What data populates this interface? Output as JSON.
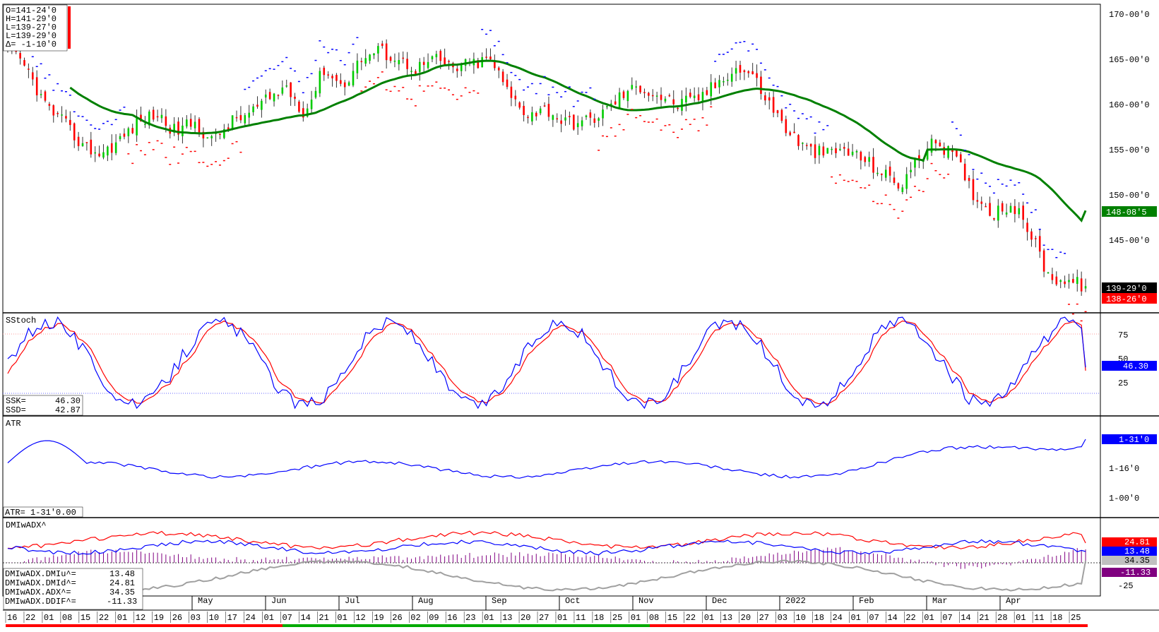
{
  "colors": {
    "up_bar": "#00cc00",
    "down_bar": "#ff0000",
    "sma": "#008000",
    "sar_above": "#0000ff",
    "sar_below": "#ff0000",
    "stoch_k": "#0000ff",
    "stoch_d": "#ff0000",
    "atr": "#0000ff",
    "dmi_plus": "#0000ff",
    "dmi_minus": "#ff0000",
    "adx": "#a0a0a0",
    "ddif": "#800080",
    "grid_top": "#ff9999",
    "grid_bottom": "#6666ff",
    "sma_label_bg": "#008000",
    "last_label_bg": "#000000",
    "low_label_bg": "#ff0000"
  },
  "ohlc_panel": {
    "lines": [
      "O=141-24'0",
      "H=141-29'0",
      "L=139-27'0",
      "L=139-29'0",
      "Δ= -1-10'0"
    ]
  },
  "price_axis": {
    "ticks": [
      "170-00'0",
      "165-00'0",
      "160-00'0",
      "155-00'0",
      "150-00'0",
      "145-00'0"
    ],
    "sma_label": "148-08'5",
    "last_label": "139-29'0",
    "low_label": "138-26'0"
  },
  "stoch_panel": {
    "title": "SStoch",
    "ticks": [
      "75",
      "50",
      "25"
    ],
    "value_label": "46.30",
    "legend": [
      {
        "name": "SSK=",
        "value": "46.30"
      },
      {
        "name": "SSD=",
        "value": "42.87"
      }
    ]
  },
  "atr_panel": {
    "title": "ATR",
    "ticks": [
      "1-16'0",
      "1-00'0"
    ],
    "value_label": "1-31'0",
    "legend": "ATR= 1-31'0.00"
  },
  "dmi_panel": {
    "title": "DMIwADX^",
    "ticks": [
      "-25"
    ],
    "labels": {
      "minus": "24.81",
      "plus": "13.48",
      "adx": "34.35",
      "ddif": "-11.33"
    },
    "legend": [
      {
        "name": "DMIwADX.DMIu^=",
        "value": "13.48"
      },
      {
        "name": "DMIwADX.DMId^=",
        "value": "24.81"
      },
      {
        "name": "DMIwADX.ADX^=",
        "value": "34.35"
      },
      {
        "name": "DMIwADX.DDIF^=",
        "value": "-11.33"
      }
    ]
  },
  "time_axis": {
    "months": [
      "May",
      "Jun",
      "Jul",
      "Aug",
      "Sep",
      "Oct",
      "Nov",
      "Dec",
      "2022",
      "Feb",
      "Mar",
      "Apr"
    ],
    "days": [
      "16",
      "22",
      "01",
      "08",
      "15",
      "22",
      "01",
      "12",
      "19",
      "26",
      "03",
      "10",
      "17",
      "24",
      "01",
      "07",
      "14",
      "21",
      "01",
      "12",
      "19",
      "26",
      "02",
      "09",
      "16",
      "23",
      "01",
      "13",
      "20",
      "27",
      "01",
      "11",
      "18",
      "25",
      "01",
      "08",
      "15",
      "22",
      "01",
      "13",
      "20",
      "27",
      "03",
      "10",
      "18",
      "24",
      "01",
      "07",
      "14",
      "22",
      "01",
      "07",
      "14",
      "21",
      "28",
      "01",
      "11",
      "18",
      "25"
    ]
  },
  "chart_data": [
    {
      "type": "candlestick",
      "name": "Price",
      "y_range": [
        138,
        170.5
      ],
      "approx_close_path": [
        [
          "2021-04-16",
          166
        ],
        [
          "2021-04-22",
          164
        ],
        [
          "2021-05-01",
          160
        ],
        [
          "2021-05-08",
          158
        ],
        [
          "2021-05-15",
          155.5
        ],
        [
          "2021-05-22",
          154.5
        ],
        [
          "2021-06-01",
          156
        ],
        [
          "2021-06-12",
          158
        ],
        [
          "2021-06-19",
          159
        ],
        [
          "2021-06-26",
          157
        ],
        [
          "2021-07-03",
          158
        ],
        [
          "2021-07-10",
          156
        ],
        [
          "2021-07-17",
          158
        ],
        [
          "2021-07-24",
          159
        ],
        [
          "2021-08-01",
          160.5
        ],
        [
          "2021-08-07",
          162
        ],
        [
          "2021-08-14",
          159
        ],
        [
          "2021-08-21",
          164
        ],
        [
          "2021-09-01",
          162
        ],
        [
          "2021-09-12",
          165
        ],
        [
          "2021-09-19",
          166
        ],
        [
          "2021-09-26",
          165
        ],
        [
          "2021-10-02",
          164
        ],
        [
          "2021-10-09",
          165
        ],
        [
          "2021-10-16",
          164
        ],
        [
          "2021-10-23",
          164.5
        ],
        [
          "2021-11-01",
          165
        ],
        [
          "2021-11-13",
          161
        ],
        [
          "2021-11-20",
          159
        ],
        [
          "2021-11-27",
          159.5
        ],
        [
          "2021-12-01",
          158
        ],
        [
          "2021-12-11",
          158
        ],
        [
          "2021-12-18",
          159
        ],
        [
          "2021-12-25",
          161
        ],
        [
          "2022-01-01",
          162
        ],
        [
          "2022-01-08",
          161
        ],
        [
          "2022-01-15",
          160
        ],
        [
          "2022-01-22",
          160.5
        ],
        [
          "2022-02-01",
          162
        ],
        [
          "2022-02-13",
          164
        ],
        [
          "2022-02-20",
          163.5
        ],
        [
          "2022-02-27",
          160
        ],
        [
          "2022-03-03",
          157
        ],
        [
          "2022-03-10",
          155
        ],
        [
          "2022-03-18",
          154.5
        ],
        [
          "2022-03-24",
          155
        ],
        [
          "2022-04-01",
          154
        ],
        [
          "2022-04-07",
          152.5
        ],
        [
          "2022-04-14",
          151
        ],
        [
          "2022-04-22",
          154
        ],
        [
          "2022-05-01",
          156
        ],
        [
          "2022-05-07",
          154
        ],
        [
          "2022-05-14",
          150
        ],
        [
          "2022-05-21",
          148
        ],
        [
          "2022-05-28",
          149
        ],
        [
          "2022-06-01",
          146
        ],
        [
          "2022-06-11",
          141
        ],
        [
          "2022-06-18",
          140.5
        ],
        [
          "2022-06-25",
          139.9
        ]
      ],
      "moving_average_last": 148.27,
      "last": 139.9
    },
    {
      "type": "line",
      "name": "SStoch",
      "y_range": [
        0,
        100
      ],
      "series": [
        {
          "name": "SSK",
          "last": 46.3
        },
        {
          "name": "SSD",
          "last": 42.87
        }
      ],
      "reference_lines": [
        80,
        20
      ]
    },
    {
      "type": "line",
      "name": "ATR",
      "series": [
        {
          "name": "ATR",
          "last": 1.96875
        }
      ]
    },
    {
      "type": "line",
      "name": "DMIwADX^",
      "series": [
        {
          "name": "DMIu",
          "last": 13.48
        },
        {
          "name": "DMId",
          "last": 24.81
        },
        {
          "name": "ADX",
          "last": 34.35
        },
        {
          "name": "DDIF",
          "last": -11.33
        }
      ]
    }
  ]
}
